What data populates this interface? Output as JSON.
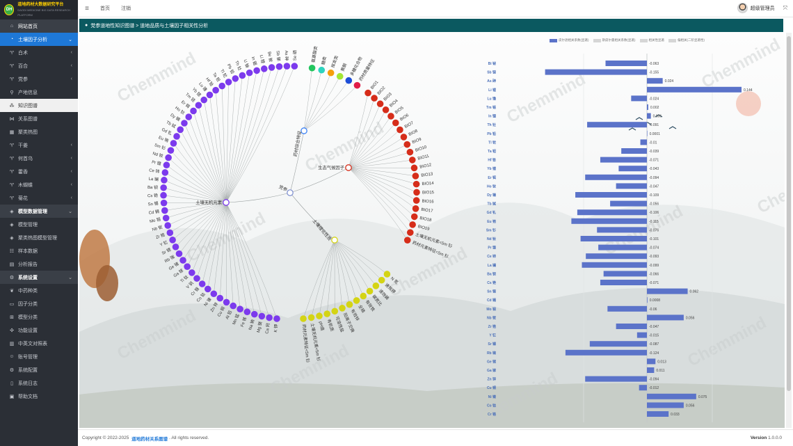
{
  "brand": {
    "logo": "DH",
    "title": "道地药材大数据研究平台",
    "subtitle": "DAODI MEDICINE BIG DATA RESEARCH PLATFORM"
  },
  "sidebar": {
    "items": [
      {
        "label": "网站首页",
        "icon": "home-icon",
        "style": "top",
        "chevron": ""
      },
      {
        "label": "土壤因子分析",
        "icon": "pie-chart-icon",
        "style": "group-open",
        "chevron": "⌄"
      },
      {
        "label": "白术",
        "icon": "sprout-icon",
        "style": "",
        "chevron": "‹"
      },
      {
        "label": "百合",
        "icon": "sprout-icon",
        "style": "",
        "chevron": "‹"
      },
      {
        "label": "党参",
        "icon": "sprout-icon",
        "style": "",
        "chevron": "‹"
      },
      {
        "label": "产地信息",
        "icon": "map-pin-icon",
        "style": "",
        "chevron": ""
      },
      {
        "label": "知识图谱",
        "icon": "network-icon",
        "style": "selected",
        "chevron": ""
      },
      {
        "label": "关系图谱",
        "icon": "relation-icon",
        "style": "",
        "chevron": ""
      },
      {
        "label": "聚类热图",
        "icon": "heatmap-icon",
        "style": "",
        "chevron": ""
      },
      {
        "label": "干姜",
        "icon": "sprout-icon",
        "style": "",
        "chevron": "‹"
      },
      {
        "label": "何首乌",
        "icon": "sprout-icon",
        "style": "",
        "chevron": "‹"
      },
      {
        "label": "藿香",
        "icon": "sprout-icon",
        "style": "",
        "chevron": "‹"
      },
      {
        "label": "木蝴蝶",
        "icon": "sprout-icon",
        "style": "",
        "chevron": "‹"
      },
      {
        "label": "菊花",
        "icon": "sprout-icon",
        "style": "",
        "chevron": "‹"
      },
      {
        "label": "模型数据管理",
        "icon": "cube-icon",
        "style": "section",
        "chevron": "⌄"
      },
      {
        "label": "模型管理",
        "icon": "cube-icon",
        "style": "",
        "chevron": ""
      },
      {
        "label": "聚类热图模型管理",
        "icon": "cube-icon",
        "style": "",
        "chevron": ""
      },
      {
        "label": "样本数据",
        "icon": "users-icon",
        "style": "",
        "chevron": ""
      },
      {
        "label": "分析报告",
        "icon": "document-icon",
        "style": "",
        "chevron": ""
      },
      {
        "label": "系统设置",
        "icon": "cogs-icon",
        "style": "section",
        "chevron": "⌄"
      },
      {
        "label": "中药种类",
        "icon": "pagelines-icon",
        "style": "",
        "chevron": ""
      },
      {
        "label": "因子分类",
        "icon": "folder-icon",
        "style": "",
        "chevron": ""
      },
      {
        "label": "模型分类",
        "icon": "sitemap-icon",
        "style": "",
        "chevron": ""
      },
      {
        "label": "功能设置",
        "icon": "puzzle-icon",
        "style": "",
        "chevron": ""
      },
      {
        "label": "中英文对照表",
        "icon": "table-icon",
        "style": "",
        "chevron": ""
      },
      {
        "label": "账号管理",
        "icon": "user-icon",
        "style": "",
        "chevron": ""
      },
      {
        "label": "系统配置",
        "icon": "gear-icon",
        "style": "",
        "chevron": ""
      },
      {
        "label": "系统日志",
        "icon": "file-icon",
        "style": "",
        "chevron": ""
      },
      {
        "label": "帮助文档",
        "icon": "book-icon",
        "style": "",
        "chevron": ""
      }
    ]
  },
  "header": {
    "menu_icon": "≡",
    "links": [
      "首页",
      "注销"
    ],
    "user": "超级管理员",
    "fullscreen_icon": "⤧"
  },
  "breadcrumb": "党参道地性知识图谱 > 道地品质与土壤因子相关性分析",
  "graph": {
    "center": "党参",
    "branches": [
      {
        "name": "药材综合特征",
        "color": "#3b82f6",
        "leaves": [
          {
            "label": "氨基酸类",
            "color": "#22c55e"
          },
          {
            "label": "糖类",
            "color": "#2dd4bf"
          },
          {
            "label": "挥发类",
            "color": "#f59e0b"
          },
          {
            "label": "黄酮",
            "color": "#a3e635"
          },
          {
            "label": "多糖化合物",
            "color": "#1d4ed8"
          },
          {
            "label": "药材质量特征",
            "color": "#e11d48"
          }
        ]
      },
      {
        "name": "生态气候因子",
        "color": "#d62d1a",
        "leaves": [
          "BIO1",
          "BIO2",
          "BIO3",
          "BIO4",
          "BIO5",
          "BIO6",
          "BIO7",
          "BIO8",
          "BIO9",
          "BIO10",
          "BIO11",
          "BIO12",
          "BIO13",
          "BIO14",
          "BIO15",
          "BIO16",
          "BIO17",
          "BIO18",
          "BIO19",
          "土壤无机元素<5m 钐",
          "药材元素特征<5m 钐"
        ]
      },
      {
        "name": "土壤理化性质",
        "color": "#d4d414",
        "leaves": [
          "N 氮",
          "速效钾",
          "速效磷",
          "碳氮比",
          "有效铁",
          "全磷",
          "有效锌",
          "阳离子交换",
          "可溶性盐",
          "有机质",
          "pH值",
          "土壤无机元素<5m 钐",
          "药材元素特征<5m 钐"
        ]
      },
      {
        "name": "土壤无机元素",
        "color": "#7c3aed",
        "leaves": [
          "K 钾",
          "Ca 钙",
          "Mg 镁",
          "Na 钠",
          "Fe 铁",
          "Mn 锰",
          "Al 铝",
          "Cu 铜",
          "Zn 锌",
          "Ni 镍",
          "Co 钴",
          "Cr 铬",
          "V 钒",
          "Ti 钛",
          "Ga 镓",
          "Ge 锗",
          "Rb 铷",
          "Sr 锶",
          "Y 钇",
          "Zr 锆",
          "Nb 铌",
          "Mo 钼",
          "Cd 镉",
          "Sn 锡",
          "Cs 铯",
          "Ba 钡",
          "La 镧",
          "Ce 铈",
          "Pr 镨",
          "Nd 钕",
          "Sm 钐",
          "Eu 铕",
          "Gd 钆",
          "Tb 铽",
          "Dy 镝",
          "Ho 钬",
          "Er 铒",
          "Tm 铥",
          "Yb 镱",
          "Lu 镥",
          "Hf 铪",
          "Ta 钽",
          "Tl 铊",
          "Pb 铅",
          "Th 钍",
          "U 铀",
          "In 铟",
          "Li 锂",
          "Be 铍",
          "Sb 锑",
          "As 砷",
          "Se 硒"
        ]
      }
    ]
  },
  "chart_data": {
    "type": "bar",
    "orientation": "horizontal",
    "legend": [
      "皮尔逊相关系数(显著)",
      "斯皮尔曼相关系数(显著)",
      "相关性显著",
      "偏相关(二阶显著性)"
    ],
    "legend_colors": [
      "#5b73c9",
      "#d6d6d6",
      "#d6d6d6",
      "#d6d6d6"
    ],
    "categories": [
      "Bi 铋",
      "Sb 锑",
      "As 砷",
      "Li 锂",
      "Lu 镥",
      "Tm 铥",
      "In 铟",
      "Th 钍",
      "Pb 铅",
      "Tl 铊",
      "Ta 钽",
      "Hf 铪",
      "Yb 镱",
      "Er 铒",
      "Ho 钬",
      "Dy 镝",
      "Tb 铽",
      "Gd 钆",
      "Eu 铕",
      "Sm 钐",
      "Nd 钕",
      "Pr 镨",
      "Ce 铈",
      "La 镧",
      "Ba 钡",
      "Cs 铯",
      "Sn 锡",
      "Cd 镉",
      "Mo 钼",
      "Nb 铌",
      "Zr 锆",
      "Y 钇",
      "Sr 锶",
      "Rb 铷",
      "Ge 锗",
      "Ga 镓",
      "Zn 锌",
      "Cu 铜",
      "Ni 镍",
      "Co 钴",
      "Cr 铬"
    ],
    "values": [
      -0.063,
      -0.155,
      0.024,
      0.144,
      -0.024,
      0.002,
      0.006,
      -0.091,
      0.0001,
      -0.01,
      -0.039,
      -0.071,
      -0.043,
      -0.094,
      -0.047,
      -0.109,
      -0.056,
      -0.106,
      -0.115,
      -0.076,
      -0.101,
      -0.074,
      -0.093,
      -0.099,
      -0.066,
      -0.071,
      0.062,
      0.0008,
      -0.06,
      0.056,
      -0.047,
      -0.015,
      -0.087,
      -0.124,
      0.013,
      0.011,
      -0.094,
      -0.012,
      0.075,
      0.056,
      0.033
    ],
    "labels": [
      "-0.063",
      "-0.155",
      "0.024",
      "0.144",
      "-0.024",
      "0.002",
      "0.006",
      "-0.091",
      "0.0001",
      "-0.01",
      "-0.039",
      "-0.071",
      "-0.043",
      "-0.094",
      "-0.047",
      "-0.109",
      "-0.056",
      "-0.106",
      "-0.115",
      "-0.076",
      "-0.101",
      "-0.074",
      "-0.093",
      "-0.099",
      "-0.066",
      "-0.071",
      "0.062",
      "0.0008",
      "-0.06",
      "0.056",
      "-0.047",
      "-0.015",
      "-0.087",
      "-0.124",
      "0.013",
      "0.011",
      "-0.094",
      "-0.012",
      "0.075",
      "0.056",
      "0.033"
    ],
    "xlim": [
      -0.17,
      0.17
    ],
    "bar_color": "#5b73c9",
    "grid": true
  },
  "footer": {
    "copyright": "Copyright © 2022-2025",
    "link": "道地药材关系图谱",
    "rights": ". All rights reserved.",
    "version_label": "Version",
    "version": "1.0.0.0"
  },
  "watermark": "Chemmind"
}
